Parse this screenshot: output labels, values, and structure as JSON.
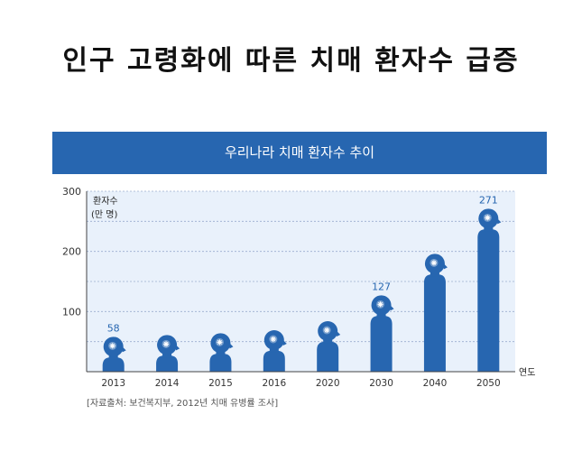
{
  "page": {
    "title": "인구 고령화에 따른 치매 환자수 급증",
    "source": "[자료출처: 보건복지부, 2012년 치매 유병률 조사]"
  },
  "chart_data": {
    "type": "bar",
    "title": "우리나라 치매 환자수 추이",
    "ylabel_line1": "환자수",
    "ylabel_line2": "(만 명)",
    "xlabel": "연도",
    "categories": [
      "2013",
      "2014",
      "2015",
      "2016",
      "2020",
      "2030",
      "2040",
      "2050"
    ],
    "values": [
      58,
      61,
      64,
      69,
      84,
      127,
      196,
      271
    ],
    "value_labels": [
      "58",
      "",
      "",
      "",
      "",
      "127",
      "",
      "271"
    ],
    "ylim": [
      0,
      300
    ],
    "yticks": [
      100,
      200,
      300
    ],
    "minor_yticks": [
      50,
      150,
      250
    ],
    "grid": true,
    "bar_shape": "human-head-silhouette",
    "colors": {
      "bar": "#2766b0",
      "plot_bg": "#e9f1fb",
      "grid": "#9aaed0",
      "value_label": "#2766b0"
    }
  }
}
